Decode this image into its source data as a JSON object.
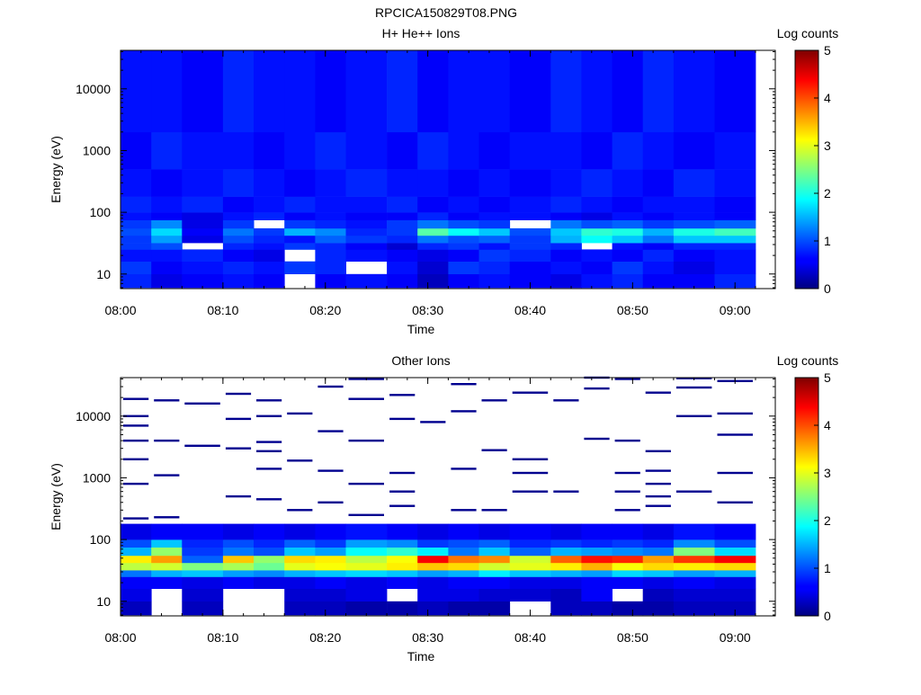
{
  "figure_title": "RPCICA150829T08.PNG",
  "chart_data": [
    {
      "type": "heatmap",
      "title": "H+ He++ Ions",
      "xlabel": "Time",
      "ylabel": "Energy (eV)",
      "colorbar_label": "Log counts",
      "x_ticks": [
        "08:00",
        "08:10",
        "08:20",
        "08:30",
        "08:40",
        "08:50",
        "09:00"
      ],
      "y_ticks": [
        "10",
        "100",
        "1000",
        "10000"
      ],
      "y_scale": "log",
      "ylim": [
        5.8,
        42000
      ],
      "colorbar_ticks": [
        "0",
        "1",
        "2",
        "3",
        "4",
        "5"
      ],
      "colorbar_range": [
        0,
        5
      ],
      "colormap": "jet",
      "x_start": "08:00",
      "x_end": "09:02",
      "time_bins": [
        "08:00",
        "08:03",
        "08:06",
        "08:10",
        "08:13",
        "08:16",
        "08:19",
        "08:22",
        "08:26",
        "08:29",
        "08:32",
        "08:35",
        "08:38",
        "08:42",
        "08:45",
        "08:48",
        "08:51",
        "08:54",
        "08:58"
      ],
      "bands": [
        {
          "e_min": 6,
          "e_max": 10,
          "values": [
            0.8,
            0.5,
            0.6,
            0.7,
            0.6,
            null,
            0.6,
            0.7,
            0.6,
            0.3,
            0.6,
            0.7,
            0.6,
            0.5,
            0.7,
            0.8,
            0.6,
            0.6,
            0.8
          ]
        },
        {
          "e_min": 10,
          "e_max": 16,
          "values": [
            0.9,
            0.6,
            0.7,
            0.8,
            0.7,
            0.9,
            0.8,
            null,
            0.7,
            0.4,
            0.9,
            0.8,
            0.6,
            0.7,
            0.6,
            0.9,
            0.7,
            0.5,
            0.7
          ]
        },
        {
          "e_min": 16,
          "e_max": 25,
          "values": [
            0.7,
            0.7,
            0.8,
            0.6,
            0.5,
            null,
            0.8,
            0.7,
            0.6,
            0.5,
            0.6,
            0.9,
            0.8,
            0.6,
            0.7,
            0.6,
            0.8,
            0.6,
            0.7
          ]
        },
        {
          "e_min": 25,
          "e_max": 32,
          "values": [
            0.9,
            1.0,
            null,
            0.8,
            0.7,
            0.9,
            0.8,
            0.6,
            0.4,
            0.8,
            0.9,
            0.7,
            0.9,
            0.8,
            null,
            0.7,
            0.6,
            0.8,
            0.8
          ]
        },
        {
          "e_min": 32,
          "e_max": 42,
          "values": [
            0.9,
            1.4,
            0.5,
            1.0,
            0.8,
            0.7,
            1.1,
            0.9,
            0.8,
            1.2,
            1.0,
            1.1,
            0.9,
            1.5,
            1.9,
            1.6,
            1.2,
            1.6,
            1.6
          ]
        },
        {
          "e_min": 42,
          "e_max": 55,
          "values": [
            1.0,
            1.7,
            0.6,
            1.2,
            0.9,
            1.5,
            1.3,
            0.8,
            0.9,
            2.3,
            1.9,
            1.6,
            1.0,
            1.6,
            2.1,
            2.0,
            1.5,
            2.0,
            2.2
          ]
        },
        {
          "e_min": 55,
          "e_max": 75,
          "values": [
            0.9,
            1.3,
            0.5,
            0.9,
            null,
            0.9,
            0.8,
            0.7,
            0.9,
            1.2,
            1.0,
            0.9,
            null,
            1.2,
            1.0,
            1.1,
            0.9,
            1.0,
            1.1
          ]
        },
        {
          "e_min": 75,
          "e_max": 100,
          "values": [
            0.7,
            0.6,
            0.5,
            0.7,
            0.8,
            0.6,
            0.7,
            0.6,
            0.6,
            0.8,
            0.6,
            0.7,
            0.7,
            0.6,
            0.5,
            0.7,
            0.6,
            0.7,
            0.6
          ]
        },
        {
          "e_min": 100,
          "e_max": 180,
          "values": [
            0.8,
            0.7,
            0.8,
            0.6,
            0.7,
            0.8,
            0.7,
            0.7,
            0.8,
            0.6,
            0.7,
            0.6,
            0.7,
            0.8,
            0.7,
            0.6,
            0.7,
            0.7,
            0.6
          ]
        },
        {
          "e_min": 180,
          "e_max": 500,
          "values": [
            0.7,
            0.6,
            0.7,
            0.8,
            0.7,
            0.6,
            0.7,
            0.8,
            0.7,
            0.7,
            0.6,
            0.7,
            0.6,
            0.7,
            0.8,
            0.7,
            0.6,
            0.8,
            0.7
          ]
        },
        {
          "e_min": 500,
          "e_max": 2000,
          "values": [
            0.6,
            0.8,
            0.7,
            0.7,
            0.6,
            0.7,
            0.8,
            0.7,
            0.6,
            0.8,
            0.7,
            0.6,
            0.7,
            0.7,
            0.6,
            0.8,
            0.7,
            0.6,
            0.7
          ]
        },
        {
          "e_min": 2000,
          "e_max": 42000,
          "values": [
            0.7,
            0.7,
            0.6,
            0.8,
            0.7,
            0.7,
            0.6,
            0.7,
            0.8,
            0.6,
            0.7,
            0.7,
            0.6,
            0.8,
            0.7,
            0.6,
            0.8,
            0.7,
            0.6
          ]
        }
      ]
    },
    {
      "type": "heatmap",
      "title": "Other Ions",
      "xlabel": "Time",
      "ylabel": "Energy (eV)",
      "colorbar_label": "Log counts",
      "x_ticks": [
        "08:00",
        "08:10",
        "08:20",
        "08:30",
        "08:40",
        "08:50",
        "09:00"
      ],
      "y_ticks": [
        "10",
        "100",
        "1000",
        "10000"
      ],
      "y_scale": "log",
      "ylim": [
        5.8,
        42000
      ],
      "colorbar_ticks": [
        "0",
        "1",
        "2",
        "3",
        "4",
        "5"
      ],
      "colorbar_range": [
        0,
        5
      ],
      "colormap": "jet",
      "x_start": "08:00",
      "x_end": "09:02",
      "time_bins": [
        "08:00",
        "08:03",
        "08:06",
        "08:10",
        "08:13",
        "08:16",
        "08:19",
        "08:22",
        "08:26",
        "08:29",
        "08:32",
        "08:35",
        "08:38",
        "08:42",
        "08:45",
        "08:48",
        "08:51",
        "08:54",
        "08:58"
      ],
      "bands": [
        {
          "e_min": 6,
          "e_max": 10,
          "values": [
            0.3,
            null,
            0.3,
            null,
            null,
            0.3,
            0.3,
            0.2,
            0.2,
            0.3,
            0.2,
            0.2,
            null,
            0.3,
            0.3,
            0.2,
            0.2,
            0.3,
            0.3
          ]
        },
        {
          "e_min": 10,
          "e_max": 16,
          "values": [
            0.5,
            null,
            0.4,
            null,
            null,
            0.4,
            0.4,
            0.5,
            null,
            0.5,
            0.5,
            0.4,
            0.4,
            0.3,
            0.6,
            null,
            0.3,
            0.4,
            0.4
          ]
        },
        {
          "e_min": 16,
          "e_max": 25,
          "values": [
            0.6,
            0.6,
            0.5,
            0.6,
            0.5,
            0.5,
            0.6,
            0.5,
            0.6,
            0.5,
            0.6,
            0.6,
            0.5,
            0.5,
            0.6,
            0.6,
            0.5,
            0.6,
            0.5
          ]
        },
        {
          "e_min": 25,
          "e_max": 32,
          "values": [
            1.2,
            1.5,
            1.6,
            1.4,
            1.3,
            1.5,
            1.6,
            1.7,
            1.6,
            1.4,
            1.5,
            1.8,
            1.6,
            1.5,
            1.4,
            1.7,
            1.6,
            1.4,
            1.5
          ]
        },
        {
          "e_min": 32,
          "e_max": 42,
          "values": [
            2.8,
            2.9,
            2.5,
            2.7,
            2.4,
            3.0,
            3.1,
            3.0,
            3.2,
            3.4,
            3.3,
            2.9,
            3.0,
            3.2,
            3.5,
            3.1,
            3.3,
            3.2,
            3.3
          ]
        },
        {
          "e_min": 42,
          "e_max": 55,
          "values": [
            3.2,
            3.6,
            1.1,
            3.4,
            2.6,
            3.3,
            3.2,
            2.8,
            3.1,
            4.4,
            3.8,
            3.7,
            2.9,
            3.9,
            4.3,
            4.2,
            3.6,
            4.1,
            4.4
          ]
        },
        {
          "e_min": 55,
          "e_max": 75,
          "values": [
            1.5,
            2.6,
            0.9,
            1.2,
            1.0,
            1.6,
            1.4,
            1.9,
            2.1,
            1.8,
            1.2,
            1.6,
            1.1,
            1.5,
            1.4,
            1.3,
            1.2,
            2.5,
            1.7
          ]
        },
        {
          "e_min": 75,
          "e_max": 100,
          "values": [
            1.0,
            1.6,
            0.8,
            1.0,
            0.8,
            1.1,
            0.9,
            1.4,
            1.3,
            0.9,
            1.0,
            1.1,
            0.8,
            0.9,
            0.8,
            0.9,
            0.8,
            1.3,
            1.0
          ]
        },
        {
          "e_min": 100,
          "e_max": 180,
          "values": [
            0.5,
            0.6,
            0.6,
            0.5,
            0.6,
            0.5,
            0.6,
            0.7,
            0.6,
            0.5,
            0.6,
            0.5,
            0.6,
            0.5,
            0.6,
            0.6,
            0.5,
            0.7,
            0.6
          ]
        }
      ],
      "sparse_lines": [
        {
          "time_bin": "08:00",
          "energies": [
            220,
            800,
            2000,
            4000,
            7000,
            10000,
            19000
          ]
        },
        {
          "time_bin": "08:03",
          "energies": [
            230,
            1100,
            4000,
            18000
          ]
        },
        {
          "time_bin": "08:06",
          "energies": [
            3300,
            16000
          ]
        },
        {
          "time_bin": "08:10",
          "energies": [
            500,
            3000,
            9000,
            23000
          ]
        },
        {
          "time_bin": "08:13",
          "energies": [
            450,
            1400,
            2700,
            3800,
            10000,
            18000
          ]
        },
        {
          "time_bin": "08:16",
          "energies": [
            300,
            1900,
            11000
          ]
        },
        {
          "time_bin": "08:19",
          "energies": [
            400,
            1300,
            5700,
            30000
          ]
        },
        {
          "time_bin": "08:22",
          "energies": [
            250,
            800,
            4000,
            19000,
            40000
          ]
        },
        {
          "time_bin": "08:26",
          "energies": [
            350,
            600,
            1200,
            9000,
            22000
          ]
        },
        {
          "time_bin": "08:29",
          "energies": [
            8000
          ]
        },
        {
          "time_bin": "08:32",
          "energies": [
            300,
            1400,
            12000,
            33000
          ]
        },
        {
          "time_bin": "08:35",
          "energies": [
            300,
            2800,
            18000
          ]
        },
        {
          "time_bin": "08:38",
          "energies": [
            600,
            1200,
            2000,
            24000
          ]
        },
        {
          "time_bin": "08:42",
          "energies": [
            600,
            18000
          ]
        },
        {
          "time_bin": "08:45",
          "energies": [
            4300,
            28000,
            42000
          ]
        },
        {
          "time_bin": "08:48",
          "energies": [
            300,
            600,
            1200,
            4000,
            40000
          ]
        },
        {
          "time_bin": "08:51",
          "energies": [
            350,
            500,
            800,
            1300,
            2700,
            24000
          ]
        },
        {
          "time_bin": "08:54",
          "energies": [
            600,
            10000,
            29000,
            41000
          ]
        },
        {
          "time_bin": "08:58",
          "energies": [
            400,
            1200,
            5000,
            11000,
            37000
          ]
        }
      ]
    }
  ]
}
